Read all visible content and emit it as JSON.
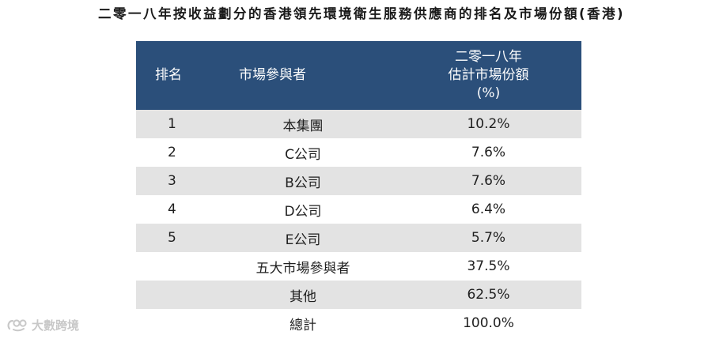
{
  "title": "二零一八年按收益劃分的香港領先環境衛生服務供應商的排名及市場份額(香港)",
  "table": {
    "headers": {
      "rank": "排名",
      "participant": "市場參與者",
      "share_line1": "二零一八年",
      "share_line2": "估計市場份額",
      "share_line3": "(%)"
    },
    "rows": [
      {
        "rank": "1",
        "participant": "本集團",
        "share": "10.2%"
      },
      {
        "rank": "2",
        "participant": "C公司",
        "share": "7.6%"
      },
      {
        "rank": "3",
        "participant": "B公司",
        "share": "7.6%"
      },
      {
        "rank": "4",
        "participant": "D公司",
        "share": "6.4%"
      },
      {
        "rank": "5",
        "participant": "E公司",
        "share": "5.7%"
      },
      {
        "rank": "",
        "participant": "五大市場參與者",
        "share": "37.5%"
      },
      {
        "rank": "",
        "participant": "其他",
        "share": "62.5%"
      },
      {
        "rank": "",
        "participant": "總計",
        "share": "100.0%"
      }
    ]
  },
  "watermark": {
    "text": "大數跨境",
    "icon": "brand-logo-icon"
  },
  "colors": {
    "header_bg": "#2b4f7a",
    "stripe_bg": "#e3e3e3"
  }
}
